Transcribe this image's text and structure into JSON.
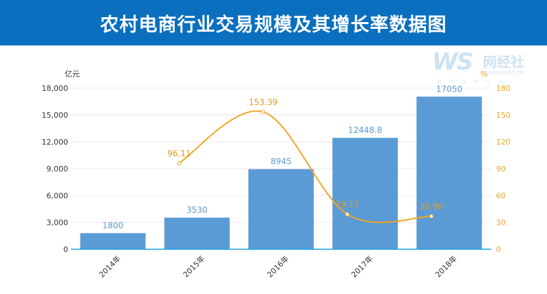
{
  "banner": {
    "title": "农村电商行业交易规模及其增长率数据图"
  },
  "watermark": {
    "brand": "WS",
    "name": "网经社",
    "url": "WWW.100EC.CN",
    "slogan": "电子商务平台"
  },
  "colors": {
    "banner": "#0b6fc0",
    "bar": "#5b9bd5",
    "line": "#f0a623",
    "bar_label": "#5b9bd5",
    "line_label": "#e09a1e"
  },
  "chart_data": {
    "type": "bar",
    "categories": [
      "2014年",
      "2015年",
      "2016年",
      "2017年",
      "2018年"
    ],
    "series": [
      {
        "type": "bar",
        "axis": "left",
        "values": [
          1800,
          3530,
          8945,
          12448.8,
          17050
        ],
        "labels": [
          "1800",
          "3530",
          "8945",
          "12448.8",
          "17050"
        ]
      },
      {
        "type": "line",
        "axis": "right",
        "values": [
          null,
          96.11,
          153.39,
          39.17,
          36.96
        ],
        "labels": [
          "",
          "96.11",
          "153.39",
          "39.17",
          "36.96"
        ]
      }
    ],
    "yleft": {
      "unit": "亿元",
      "ticks": [
        "0",
        "3,000",
        "6,000",
        "9,000",
        "12,000",
        "15,000",
        "18,000"
      ],
      "range": [
        0,
        18000
      ]
    },
    "yright": {
      "unit": "%",
      "ticks": [
        "0",
        "30",
        "60",
        "90",
        "120",
        "150",
        "180"
      ],
      "range": [
        0,
        180
      ]
    },
    "grid": true,
    "legend": "none"
  }
}
